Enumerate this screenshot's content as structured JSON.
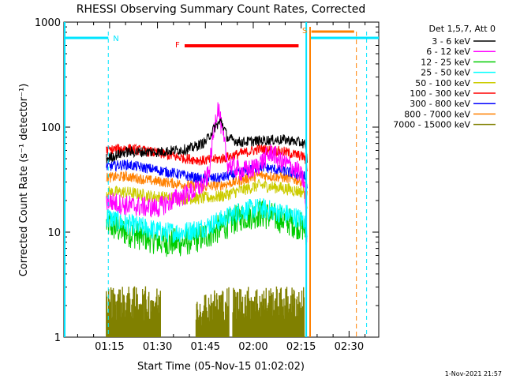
{
  "chart_data": {
    "type": "line",
    "title": "RHESSI Observing Summary Count Rates, Corrected",
    "xlabel": "Start Time (05-Nov-15 01:02:02)",
    "ylabel": "Corrected Count Rate (s⁻¹ detector⁻¹)",
    "ylog": true,
    "ylim": [
      1,
      1000
    ],
    "xlim_minutes": [
      60.7,
      159.3
    ],
    "x_ticks": [
      {
        "minute": 75,
        "label": "01:15"
      },
      {
        "minute": 90,
        "label": "01:30"
      },
      {
        "minute": 105,
        "label": "01:45"
      },
      {
        "minute": 120,
        "label": "02:00"
      },
      {
        "minute": 135,
        "label": "02:15"
      },
      {
        "minute": 150,
        "label": "02:30"
      }
    ],
    "y_ticks": [
      {
        "value": 1,
        "label": "1"
      },
      {
        "value": 10,
        "label": "10"
      },
      {
        "value": 100,
        "label": "100"
      },
      {
        "value": 1000,
        "label": "1000"
      }
    ],
    "legend_title": "Det 1,5,7, Att 0",
    "series": [
      {
        "name": "3 - 6 keV",
        "color": "#000000",
        "points": [
          [
            74,
            50
          ],
          [
            80,
            58
          ],
          [
            90,
            58
          ],
          [
            100,
            62
          ],
          [
            105,
            72
          ],
          [
            108,
            100
          ],
          [
            110,
            115
          ],
          [
            112,
            78
          ],
          [
            116,
            72
          ],
          [
            124,
            75
          ],
          [
            130,
            76
          ],
          [
            136,
            70
          ],
          [
            137,
            47
          ]
        ]
      },
      {
        "name": "6 - 12 keV",
        "color": "#ff00ff",
        "points": [
          [
            74,
            20
          ],
          [
            80,
            18
          ],
          [
            90,
            17
          ],
          [
            96,
            21
          ],
          [
            102,
            25
          ],
          [
            104,
            28
          ],
          [
            106,
            35
          ],
          [
            108,
            110
          ],
          [
            109,
            160
          ],
          [
            110,
            100
          ],
          [
            112,
            45
          ],
          [
            116,
            38
          ],
          [
            120,
            40
          ],
          [
            126,
            58
          ],
          [
            128,
            48
          ],
          [
            131,
            44
          ],
          [
            134,
            38
          ],
          [
            136,
            30
          ],
          [
            137,
            6
          ]
        ]
      },
      {
        "name": "12 - 25 keV",
        "color": "#00cc00",
        "points": [
          [
            74,
            12
          ],
          [
            80,
            10
          ],
          [
            86,
            9
          ],
          [
            92,
            8
          ],
          [
            98,
            8
          ],
          [
            104,
            9
          ],
          [
            110,
            11
          ],
          [
            116,
            14
          ],
          [
            122,
            15
          ],
          [
            126,
            14
          ],
          [
            130,
            13
          ],
          [
            136,
            11
          ],
          [
            137,
            8
          ]
        ]
      },
      {
        "name": "25 - 50 keV",
        "color": "#00ffff",
        "points": [
          [
            74,
            14
          ],
          [
            80,
            12
          ],
          [
            86,
            11
          ],
          [
            92,
            10
          ],
          [
            98,
            10
          ],
          [
            104,
            11
          ],
          [
            110,
            13
          ],
          [
            116,
            16
          ],
          [
            122,
            17
          ],
          [
            126,
            16
          ],
          [
            130,
            15
          ],
          [
            136,
            13
          ],
          [
            137,
            9
          ]
        ]
      },
      {
        "name": "50 - 100 keV",
        "color": "#cccc00",
        "points": [
          [
            74,
            24
          ],
          [
            80,
            24
          ],
          [
            88,
            22
          ],
          [
            96,
            21
          ],
          [
            104,
            21
          ],
          [
            110,
            22
          ],
          [
            116,
            25
          ],
          [
            122,
            28
          ],
          [
            126,
            27
          ],
          [
            130,
            26
          ],
          [
            136,
            24
          ],
          [
            137,
            18
          ]
        ]
      },
      {
        "name": "100 - 300 keV",
        "color": "#ff0000",
        "points": [
          [
            74,
            60
          ],
          [
            80,
            63
          ],
          [
            88,
            58
          ],
          [
            96,
            52
          ],
          [
            104,
            48
          ],
          [
            110,
            50
          ],
          [
            116,
            56
          ],
          [
            122,
            62
          ],
          [
            126,
            60
          ],
          [
            130,
            58
          ],
          [
            136,
            52
          ],
          [
            137,
            40
          ]
        ]
      },
      {
        "name": "300 - 800 keV",
        "color": "#0000ff",
        "points": [
          [
            74,
            42
          ],
          [
            80,
            44
          ],
          [
            88,
            40
          ],
          [
            96,
            36
          ],
          [
            104,
            32
          ],
          [
            110,
            33
          ],
          [
            116,
            37
          ],
          [
            122,
            42
          ],
          [
            126,
            40
          ],
          [
            130,
            38
          ],
          [
            136,
            34
          ],
          [
            137,
            27
          ]
        ]
      },
      {
        "name": "800 - 7000 keV",
        "color": "#ff8000",
        "points": [
          [
            74,
            33
          ],
          [
            80,
            34
          ],
          [
            88,
            31
          ],
          [
            96,
            29
          ],
          [
            104,
            27
          ],
          [
            110,
            28
          ],
          [
            116,
            31
          ],
          [
            122,
            35
          ],
          [
            126,
            34
          ],
          [
            130,
            33
          ],
          [
            136,
            30
          ],
          [
            137,
            23
          ]
        ]
      },
      {
        "name": "7000 - 15000 keV",
        "color": "#808000",
        "points": [
          [
            74,
            1.8
          ],
          [
            80,
            1.8
          ],
          [
            86,
            1.8
          ],
          [
            104,
            1.6
          ],
          [
            112,
            1.8
          ],
          [
            120,
            1.8
          ],
          [
            128,
            1.8
          ],
          [
            134,
            1.8
          ],
          [
            137,
            1.8
          ]
        ]
      }
    ],
    "markers": [
      {
        "label": "N",
        "color": "#00e5ff"
      },
      {
        "label": "F",
        "color": "#ff0000"
      },
      {
        "label": "S",
        "color": "#ff8000"
      }
    ],
    "footer": "1-Nov-2021 21:57"
  }
}
